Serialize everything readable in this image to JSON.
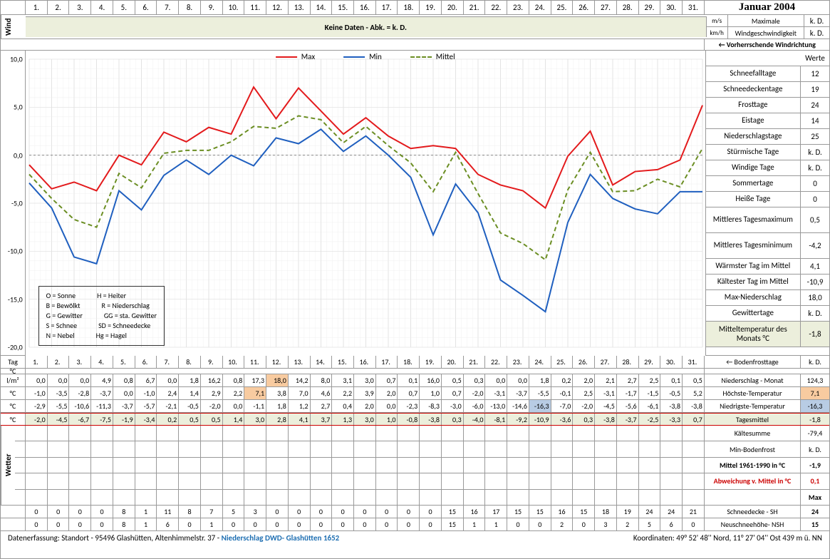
{
  "title": "Januar 2004",
  "days": [
    "1.",
    "2.",
    "3.",
    "4.",
    "5.",
    "6.",
    "7.",
    "8.",
    "9.",
    "10.",
    "11.",
    "12.",
    "13.",
    "14.",
    "15.",
    "16.",
    "17.",
    "18.",
    "19.",
    "20.",
    "21.",
    "22.",
    "23.",
    "24.",
    "25.",
    "26.",
    "27.",
    "28.",
    "29.",
    "30.",
    "31."
  ],
  "wind": {
    "label": "Wind",
    "banner": "Keine Daten - Abk. = k. D.",
    "ms": {
      "unit": "m/s",
      "label": "Maximale",
      "value": "k. D."
    },
    "kmh": {
      "unit": "km/h",
      "label": "Windgeschwindigkeit",
      "value": "k. D."
    },
    "dir_label": "← Vorherrschende Windrichtung"
  },
  "chart": {
    "type": "line",
    "ylim": [
      -20,
      10
    ],
    "ytick_step": 5,
    "yticks": [
      "10,0",
      "5,0",
      "0,0",
      "-5,0",
      "-10,0",
      "-15,0",
      "-20,0"
    ],
    "series": [
      {
        "name": "Max",
        "color": "#e31a1c",
        "width": 2,
        "dash": "",
        "values": [
          -1.0,
          -3.5,
          -2.8,
          -3.7,
          0.0,
          -1.0,
          2.4,
          1.4,
          2.9,
          2.2,
          7.1,
          3.8,
          7.0,
          4.6,
          2.2,
          3.9,
          2.0,
          0.7,
          1.0,
          0.7,
          -2.0,
          -3.1,
          -3.7,
          -5.5,
          -0.1,
          2.5,
          -3.1,
          -1.7,
          -1.5,
          -0.5,
          5.2
        ]
      },
      {
        "name": "Min",
        "color": "#1f5fbf",
        "width": 2,
        "dash": "",
        "values": [
          -2.9,
          -5.5,
          -10.6,
          -11.3,
          -3.7,
          -5.7,
          -2.1,
          -0.5,
          -2.0,
          0.0,
          -1.1,
          1.8,
          1.2,
          2.7,
          0.4,
          2.0,
          0.0,
          -2.3,
          -8.3,
          -3.0,
          -6.0,
          -13.0,
          -14.6,
          -16.3,
          -7.0,
          -2.0,
          -4.5,
          -5.6,
          -6.1,
          -3.8,
          -3.8
        ]
      },
      {
        "name": "Mittel",
        "color": "#6b8e23",
        "width": 2,
        "dash": "6,4",
        "values": [
          -2.0,
          -4.5,
          -6.7,
          -7.5,
          -1.9,
          -3.4,
          0.2,
          0.5,
          0.5,
          1.4,
          3.0,
          2.8,
          4.1,
          3.7,
          1.3,
          3.0,
          1.0,
          -0.8,
          -3.8,
          0.3,
          -4.0,
          -8.1,
          -9.2,
          -10.9,
          -3.6,
          0.3,
          -3.8,
          -3.7,
          -2.5,
          -3.3,
          0.7
        ]
      }
    ],
    "grid_color": "#d0d0d0",
    "grid_minor": "#ececec",
    "background": "#ffffff",
    "legend_pos": "top-center",
    "key_box": {
      "items": [
        [
          "O = Sonne",
          "H = Heiter"
        ],
        [
          "B = Bewölkt",
          "R = Niederschlag"
        ],
        [
          "G = Gewitter",
          "GG = sta. Gewitter"
        ],
        [
          "S = Schnee",
          "SD = Schneedecke"
        ],
        [
          "N = Nebel",
          "Hg = Hagel"
        ]
      ]
    }
  },
  "right_stats": {
    "werte": "Werte",
    "rows": [
      {
        "k": "Schneefalltage",
        "v": "12"
      },
      {
        "k": "Schneedeckentage",
        "v": "19"
      },
      {
        "k": "Frosttage",
        "v": "24"
      },
      {
        "k": "Eistage",
        "v": "14"
      },
      {
        "k": "Niederschlagstage",
        "v": "25"
      },
      {
        "k": "Stürmische Tage",
        "v": "k. D."
      },
      {
        "k": "Windige Tage",
        "v": "k. D."
      },
      {
        "k": "Sommertage",
        "v": "0"
      },
      {
        "k": "Heiße Tage",
        "v": "0"
      },
      {
        "k": "Mittleres Tagesmaximum",
        "v": "0,5",
        "tall": true
      },
      {
        "k": "Mittleres Tagesminimum",
        "v": "-4,2",
        "tall": true
      },
      {
        "k": "Wärmster Tag im Mittel",
        "v": "4,1"
      },
      {
        "k": "Kältester Tag im Mittel",
        "v": "-10,9"
      },
      {
        "k": "Max-Niederschlag",
        "v": "18,0"
      },
      {
        "k": "Gewittertage",
        "v": "k. D."
      },
      {
        "k": "Mitteltemperatur des Monats °C",
        "v": "-1,8",
        "tall": true,
        "hl": true
      }
    ]
  },
  "tag_label": "Tag",
  "unit_rows": {
    "degC": "°C",
    "lm2": "l/m²"
  },
  "data_rows": [
    {
      "lbl": "l/m²",
      "key": "Niederschlag - Monat",
      "val": "124,3",
      "values": [
        "0,0",
        "0,0",
        "0,0",
        "4,9",
        "0,8",
        "6,7",
        "0,0",
        "1,8",
        "16,2",
        "0,8",
        "17,3",
        "18,0",
        "14,2",
        "8,0",
        "3,1",
        "3,0",
        "0,7",
        "0,1",
        "16,0",
        "0,5",
        "0,3",
        "0,0",
        "0,0",
        "1,8",
        "0,2",
        "2,0",
        "2,1",
        "2,7",
        "2,5",
        "0,1",
        "0,5"
      ],
      "hl_idx": 11,
      "hl_class": "hl-orange"
    },
    {
      "lbl": "°C",
      "key": "Höchste-Temperatur",
      "val": "7,1",
      "values": [
        "-1,0",
        "-3,5",
        "-2,8",
        "-3,7",
        "0,0",
        "-1,0",
        "2,4",
        "1,4",
        "2,9",
        "2,2",
        "7,1",
        "3,8",
        "7,0",
        "4,6",
        "2,2",
        "3,9",
        "2,0",
        "0,7",
        "1,0",
        "0,7",
        "-2,0",
        "-3,1",
        "-3,7",
        "-5,5",
        "-0,1",
        "2,5",
        "-3,1",
        "-1,7",
        "-1,5",
        "-0,5",
        "5,2"
      ],
      "hl_idx": 10,
      "hl_class": "hl-orange",
      "val_hl": "hl-orange"
    },
    {
      "lbl": "°C",
      "key": "Niedrigste-Temperatur",
      "val": "-16,3",
      "values": [
        "-2,9",
        "-5,5",
        "-10,6",
        "-11,3",
        "-3,7",
        "-5,7",
        "-2,1",
        "-0,5",
        "-2,0",
        "0,0",
        "-1,1",
        "1,8",
        "1,2",
        "2,7",
        "0,4",
        "2,0",
        "0,0",
        "-2,3",
        "-8,3",
        "-3,0",
        "-6,0",
        "-13,0",
        "-14,6",
        "-16,3",
        "-7,0",
        "-2,0",
        "-4,5",
        "-5,6",
        "-6,1",
        "-3,8",
        "-3,8"
      ],
      "hl_idx": 23,
      "hl_class": "hl-blue",
      "val_hl": "hl-blue"
    },
    {
      "lbl": "°C",
      "key": "Tagesmittel",
      "val": "-1,8",
      "green": true,
      "red": true,
      "values": [
        "-2,0",
        "-4,5",
        "-6,7",
        "-7,5",
        "-1,9",
        "-3,4",
        "0,2",
        "0,5",
        "0,5",
        "1,4",
        "3,0",
        "2,8",
        "4,1",
        "3,7",
        "1,3",
        "3,0",
        "1,0",
        "-0,8",
        "-3,8",
        "0,3",
        "-4,0",
        "-8,1",
        "-9,2",
        "-10,9",
        "-3,6",
        "0,3",
        "-3,8",
        "-3,7",
        "-2,5",
        "-3,3",
        "0,7"
      ]
    }
  ],
  "bodenfrost": {
    "label": "← Bodenfrosttage",
    "value": "k. D."
  },
  "wetter": {
    "label": "Wetter",
    "right_rows": [
      {
        "k": "Kältesumme",
        "v": "-79,4"
      },
      {
        "k": "Min-Bodenfrost",
        "v": "k. D."
      },
      {
        "k": "Mittel 1961-1990 in °C",
        "v": "-1,9",
        "bold": true
      },
      {
        "k": "Abweichung v. Mittel in °C",
        "v": "0,1",
        "color": "#c00",
        "bold": true
      },
      {
        "k": "",
        "v": "Max",
        "bold": true
      }
    ]
  },
  "bottom": [
    {
      "key": "Schneedecke -  SH",
      "val": "24",
      "values": [
        "0",
        "0",
        "0",
        "0",
        "8",
        "1",
        "11",
        "8",
        "7",
        "5",
        "3",
        "0",
        "0",
        "0",
        "0",
        "0",
        "0",
        "0",
        "0",
        "15",
        "16",
        "17",
        "15",
        "15",
        "16",
        "15",
        "18",
        "19",
        "24",
        "24",
        "21"
      ]
    },
    {
      "key": "Neuschneehöhe- NSH",
      "val": "15",
      "values": [
        "0",
        "0",
        "0",
        "0",
        "8",
        "1",
        "6",
        "0",
        "1",
        "0",
        "0",
        "0",
        "0",
        "0",
        "0",
        "0",
        "0",
        "0",
        "0",
        "15",
        "1",
        "1",
        "0",
        "0",
        "2",
        "0",
        "3",
        "2",
        "5",
        "6",
        "0"
      ]
    }
  ],
  "footer": {
    "left": "Datenerfassung:  Standort -   95496  Glashütten, Altenhimmelstr. 37 - ",
    "link": "Niederschlag DWD- Glashütten 1652",
    "right": "Koordinaten:  49° 52' 48'' Nord,   11° 27' 04'' Ost   439 m ü. NN"
  }
}
